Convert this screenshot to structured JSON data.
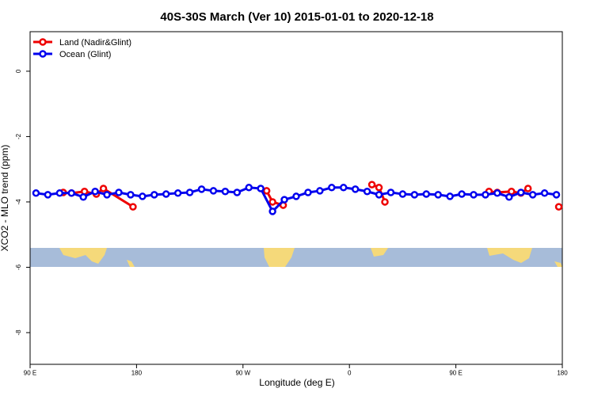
{
  "chart_data": {
    "type": "line",
    "title": "40S-30S March (Ver 10)   2015-01-01 to 2020-12-18",
    "x_label": "Longitude (deg E)",
    "y_label": "XCO2 - MLO trend (ppm)",
    "xlim": [
      90,
      540
    ],
    "ylim": [
      -8.97,
      1.21
    ],
    "xticks": [
      {
        "value": 90,
        "label": "90 E"
      },
      180,
      {
        "value": 270,
        "label": "90 W"
      },
      {
        "value": 360,
        "label": "0"
      },
      {
        "value": 450,
        "label": "90 E"
      },
      {
        "value": 540,
        "label": "180"
      }
    ],
    "yticks": [
      0,
      -2,
      -4,
      -6,
      -8
    ],
    "legend": "top-left",
    "series": [
      {
        "name": "Land (Nadir&Glint)",
        "color": "#ee0000",
        "x": [
          118,
          125,
          136,
          146,
          152,
          177,
          null,
          290,
          295,
          304,
          null,
          379,
          385,
          390,
          null,
          478,
          485,
          497,
          505,
          511,
          null,
          537
        ],
        "values": [
          -3.71,
          -3.73,
          -3.68,
          -3.76,
          -3.59,
          -4.15,
          null,
          -3.66,
          -4.0,
          -4.1,
          null,
          -3.47,
          -3.56,
          -4.0,
          null,
          -3.68,
          -3.71,
          -3.68,
          -3.73,
          -3.59,
          null,
          -4.15
        ]
      },
      {
        "name": "Ocean (Glint)",
        "color": "#0000ee",
        "x": [
          95,
          105,
          115,
          125,
          135,
          145,
          155,
          165,
          175,
          185,
          195,
          205,
          215,
          225,
          235,
          245,
          255,
          265,
          275,
          285,
          295,
          305,
          315,
          325,
          335,
          345,
          355,
          365,
          375,
          385,
          395,
          405,
          415,
          425,
          435,
          445,
          455,
          465,
          475,
          485,
          495,
          505,
          515,
          525,
          535
        ],
        "values": [
          -3.73,
          -3.78,
          -3.73,
          -3.73,
          -3.85,
          -3.68,
          -3.78,
          -3.71,
          -3.78,
          -3.83,
          -3.78,
          -3.76,
          -3.73,
          -3.71,
          -3.61,
          -3.66,
          -3.68,
          -3.71,
          -3.56,
          -3.59,
          -4.29,
          -3.93,
          -3.83,
          -3.71,
          -3.66,
          -3.56,
          -3.56,
          -3.61,
          -3.68,
          -3.78,
          -3.71,
          -3.76,
          -3.78,
          -3.76,
          -3.78,
          -3.83,
          -3.76,
          -3.78,
          -3.78,
          -3.73,
          -3.85,
          -3.71,
          -3.78,
          -3.73,
          -3.78
        ]
      }
    ]
  }
}
